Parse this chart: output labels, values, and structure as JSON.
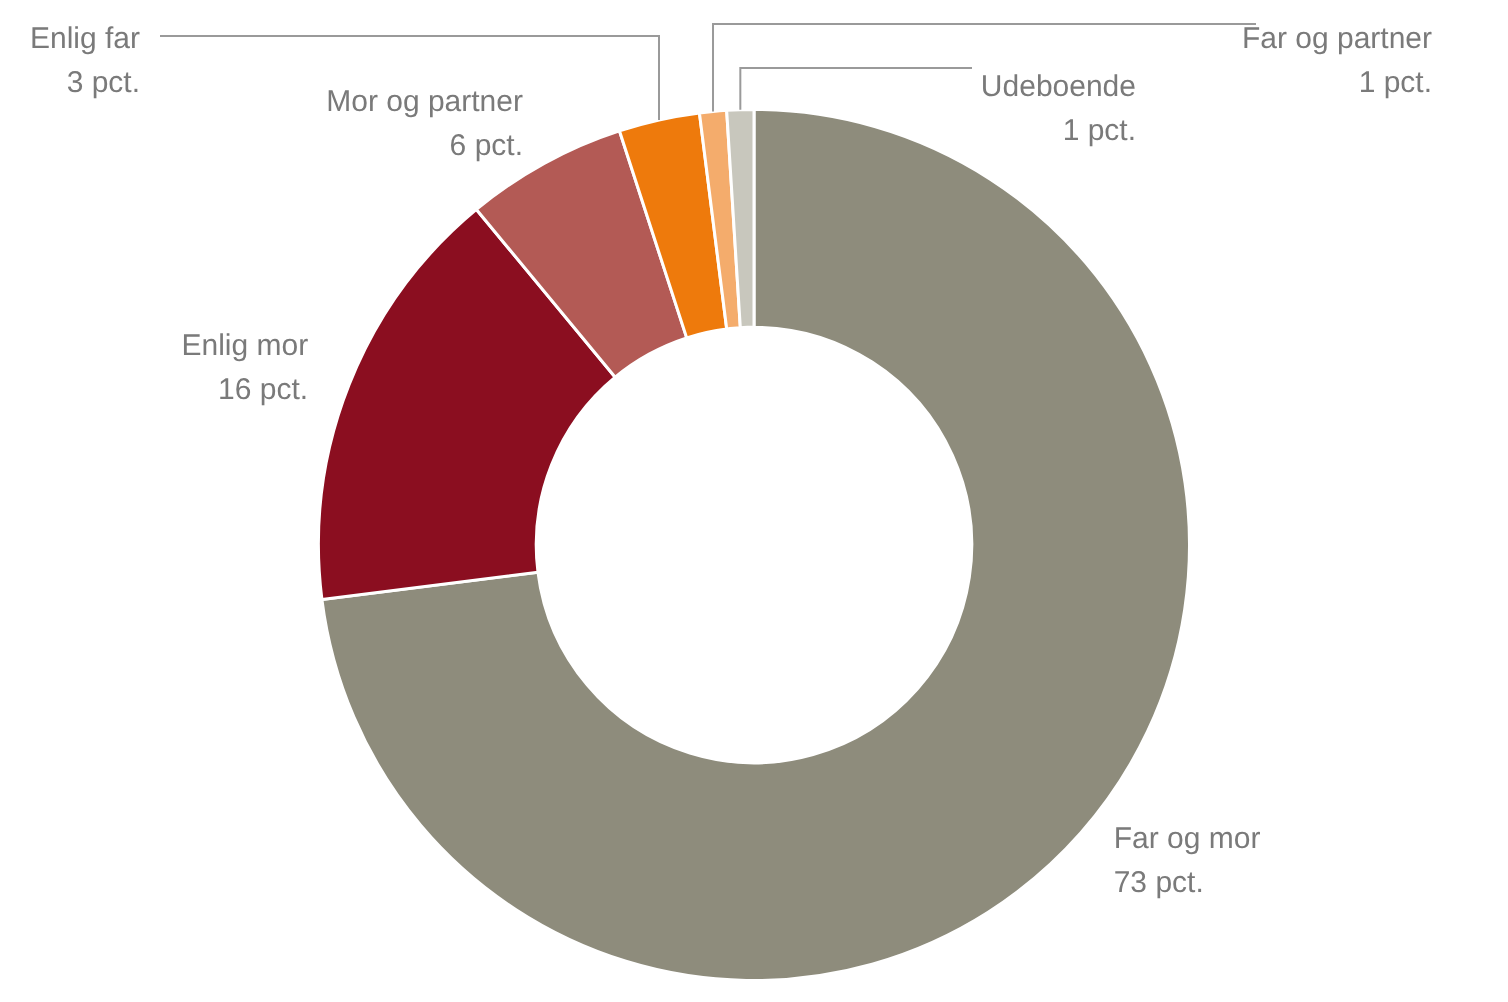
{
  "chart_data": {
    "type": "donut",
    "categories": [
      "Far og mor",
      "Enlig mor",
      "Mor og partner",
      "Enlig far",
      "Far og partner",
      "Udeboende"
    ],
    "values": [
      73,
      16,
      6,
      3,
      1,
      1
    ],
    "value_labels": [
      "73 pct.",
      "16 pct.",
      "6 pct.",
      "3 pct.",
      "1 pct.",
      "1 pct."
    ],
    "colors": [
      "#8e8c7c",
      "#8b0e20",
      "#b35a55",
      "#ee7a0c",
      "#f4ac6c",
      "#c8c7bd"
    ],
    "legend": false
  }
}
